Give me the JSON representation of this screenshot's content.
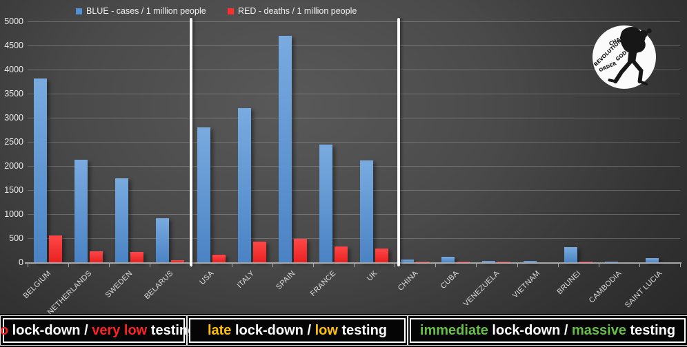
{
  "chart_data": {
    "type": "bar",
    "title": "",
    "xlabel": "",
    "ylabel": "",
    "ylim": [
      0,
      5000
    ],
    "ytick_step": 500,
    "yticks": [
      0,
      500,
      1000,
      1500,
      2000,
      2500,
      3000,
      3500,
      4000,
      4500,
      5000
    ],
    "grid": true,
    "legend_position": "top",
    "categories": [
      "BELGIUM",
      "NETHERLANDS",
      "SWEDEN",
      "BELARUS",
      "USA",
      "ITALY",
      "SPAIN",
      "FRANCE",
      "UK",
      "CHINA",
      "CUBA",
      "VENEZUELA",
      "VIETNAM",
      "BRUNEI",
      "CAMBODIA",
      "SAINT LUCIA"
    ],
    "series": [
      {
        "name": "BLUE - cases / 1 million people",
        "color": "#4f91d5",
        "values": [
          3820,
          2130,
          1740,
          920,
          2800,
          3200,
          4700,
          2450,
          2110,
          55,
          120,
          30,
          30,
          310,
          20,
          80
        ]
      },
      {
        "name": "RED - deaths / 1 million people",
        "color": "#ff2f2f",
        "values": [
          560,
          230,
          215,
          40,
          155,
          425,
          485,
          335,
          285,
          8,
          10,
          12,
          0,
          10,
          0,
          0
        ]
      }
    ],
    "groups": [
      {
        "label": "no lock-down / very low testing",
        "from": 0,
        "to": 3
      },
      {
        "label": "late lock-down / low testing",
        "from": 4,
        "to": 8
      },
      {
        "label": "immediate lock-down / massive testing",
        "from": 9,
        "to": 15
      }
    ]
  },
  "footer": {
    "segments": [
      {
        "parts": [
          {
            "text": "no",
            "color": "#ff2222",
            "bold": true
          },
          {
            "text": " lock-down / ",
            "color": "#ffffff",
            "bold": false
          },
          {
            "text": "very low",
            "color": "#ff2222",
            "bold": true
          },
          {
            "text": " testing",
            "color": "#ffffff",
            "bold": false
          }
        ]
      },
      {
        "parts": [
          {
            "text": "late",
            "color": "#ffc000",
            "bold": true
          },
          {
            "text": " lock-down / ",
            "color": "#ffffff",
            "bold": false
          },
          {
            "text": "low",
            "color": "#ffc000",
            "bold": true
          },
          {
            "text": " testing",
            "color": "#ffffff",
            "bold": false
          }
        ]
      },
      {
        "parts": [
          {
            "text": "immediate",
            "color": "#67bf4a",
            "bold": true
          },
          {
            "text": " lock-down / ",
            "color": "#ffffff",
            "bold": false
          },
          {
            "text": "massive",
            "color": "#67bf4a",
            "bold": true
          },
          {
            "text": " testing",
            "color": "#ffffff",
            "bold": false
          }
        ]
      }
    ]
  },
  "logo": {
    "words": [
      "CHAOS",
      "REVOLUTION",
      "GOD",
      "ORDER"
    ]
  }
}
